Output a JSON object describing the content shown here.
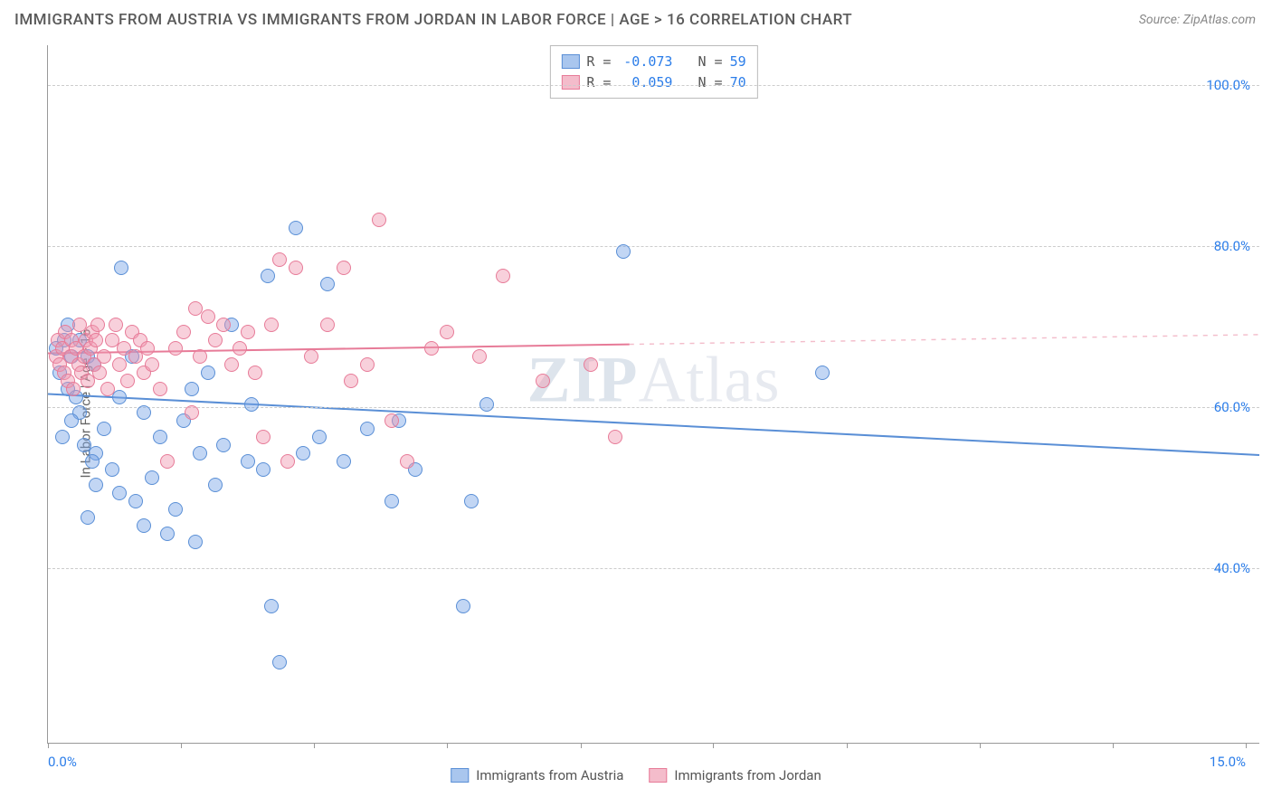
{
  "title": "IMMIGRANTS FROM AUSTRIA VS IMMIGRANTS FROM JORDAN IN LABOR FORCE | AGE > 16 CORRELATION CHART",
  "source": "Source: ZipAtlas.com",
  "ylabel": "In Labor Force | Age > 16",
  "watermark_a": "ZIP",
  "watermark_b": "Atlas",
  "chart": {
    "type": "scatter+regression",
    "background_color": "#ffffff",
    "grid_color": "#cccccc",
    "axis_color": "#999999",
    "xlim": [
      0,
      15
    ],
    "ylim": [
      20,
      105
    ],
    "yticks": [
      40,
      60,
      80,
      100
    ],
    "ytick_labels": [
      "40.0%",
      "60.0%",
      "80.0%",
      "100.0%"
    ],
    "ytick_color": "#2b7de9",
    "ytick_fontsize": 15,
    "xticks": [
      0,
      1.67,
      3.33,
      5.0,
      6.67,
      8.33,
      10.0,
      11.67,
      13.33,
      15.0
    ],
    "x_left_label": "0.0%",
    "x_right_label": "15.0%",
    "xlabel_color": "#2b7de9",
    "point_radius": 8,
    "point_opacity": 0.55,
    "line_width": 2,
    "series": [
      {
        "name": "Immigrants from Austria",
        "label": "Immigrants from Austria",
        "color_fill": "rgba(120,165,230,0.45)",
        "color_stroke": "#5a8fd6",
        "swatch_fill": "#a9c6ee",
        "swatch_stroke": "#5a8fd6",
        "R": "-0.073",
        "N": "59",
        "regression": {
          "x1": 0,
          "y1": 62.5,
          "x2": 15,
          "y2": 55.0,
          "solid_end_x": 15
        },
        "points": [
          [
            0.2,
            70
          ],
          [
            0.3,
            68
          ],
          [
            0.15,
            66
          ],
          [
            0.25,
            64
          ],
          [
            0.35,
            63
          ],
          [
            0.1,
            69
          ],
          [
            0.4,
            61
          ],
          [
            0.3,
            60
          ],
          [
            0.18,
            58
          ],
          [
            0.45,
            57
          ],
          [
            0.6,
            56
          ],
          [
            0.55,
            55
          ],
          [
            0.7,
            59
          ],
          [
            0.8,
            54
          ],
          [
            0.92,
            79
          ],
          [
            0.5,
            68
          ],
          [
            0.5,
            48
          ],
          [
            0.6,
            52
          ],
          [
            0.9,
            51
          ],
          [
            1.1,
            50
          ],
          [
            1.2,
            47
          ],
          [
            1.3,
            53
          ],
          [
            1.5,
            46
          ],
          [
            1.6,
            49
          ],
          [
            1.7,
            60
          ],
          [
            1.9,
            56
          ],
          [
            1.85,
            45
          ],
          [
            2.1,
            52
          ],
          [
            2.2,
            57
          ],
          [
            2.3,
            72
          ],
          [
            2.5,
            55
          ],
          [
            2.55,
            62
          ],
          [
            2.7,
            54
          ],
          [
            2.75,
            78
          ],
          [
            2.8,
            37
          ],
          [
            2.9,
            30
          ],
          [
            3.1,
            84
          ],
          [
            3.2,
            56
          ],
          [
            3.4,
            58
          ],
          [
            3.5,
            77
          ],
          [
            3.7,
            55
          ],
          [
            4.0,
            59
          ],
          [
            4.3,
            50
          ],
          [
            4.4,
            60
          ],
          [
            4.6,
            54
          ],
          [
            5.2,
            37
          ],
          [
            5.3,
            50
          ],
          [
            5.5,
            62
          ],
          [
            7.2,
            81
          ],
          [
            9.7,
            66
          ],
          [
            0.25,
            72
          ],
          [
            0.4,
            70
          ],
          [
            0.58,
            67
          ],
          [
            0.9,
            63
          ],
          [
            1.05,
            68
          ],
          [
            1.2,
            61
          ],
          [
            1.4,
            58
          ],
          [
            1.8,
            64
          ],
          [
            2.0,
            66
          ]
        ]
      },
      {
        "name": "Immigrants from Jordan",
        "label": "Immigrants from Jordan",
        "color_fill": "rgba(240,150,175,0.45)",
        "color_stroke": "#e77b98",
        "swatch_fill": "#f4bccb",
        "swatch_stroke": "#e77b98",
        "R": "0.059",
        "N": "70",
        "regression": {
          "x1": 0,
          "y1": 67.5,
          "x2": 15,
          "y2": 69.8,
          "solid_end_x": 7.2
        },
        "points": [
          [
            0.1,
            68
          ],
          [
            0.12,
            70
          ],
          [
            0.15,
            67
          ],
          [
            0.18,
            69
          ],
          [
            0.2,
            66
          ],
          [
            0.22,
            71
          ],
          [
            0.25,
            65
          ],
          [
            0.28,
            68
          ],
          [
            0.3,
            70
          ],
          [
            0.32,
            64
          ],
          [
            0.35,
            69
          ],
          [
            0.38,
            67
          ],
          [
            0.4,
            72
          ],
          [
            0.42,
            66
          ],
          [
            0.45,
            68
          ],
          [
            0.48,
            70
          ],
          [
            0.5,
            65
          ],
          [
            0.53,
            69
          ],
          [
            0.55,
            71
          ],
          [
            0.58,
            67
          ],
          [
            0.6,
            70
          ],
          [
            0.65,
            66
          ],
          [
            0.7,
            68
          ],
          [
            0.75,
            64
          ],
          [
            0.8,
            70
          ],
          [
            0.85,
            72
          ],
          [
            0.9,
            67
          ],
          [
            0.95,
            69
          ],
          [
            1.0,
            65
          ],
          [
            1.05,
            71
          ],
          [
            1.1,
            68
          ],
          [
            1.15,
            70
          ],
          [
            1.2,
            66
          ],
          [
            1.25,
            69
          ],
          [
            1.3,
            67
          ],
          [
            1.4,
            64
          ],
          [
            1.5,
            55
          ],
          [
            1.6,
            69
          ],
          [
            1.7,
            71
          ],
          [
            1.8,
            61
          ],
          [
            1.85,
            74
          ],
          [
            1.9,
            68
          ],
          [
            2.0,
            73
          ],
          [
            2.1,
            70
          ],
          [
            2.2,
            72
          ],
          [
            2.3,
            67
          ],
          [
            2.4,
            69
          ],
          [
            2.5,
            71
          ],
          [
            2.6,
            66
          ],
          [
            2.7,
            58
          ],
          [
            2.8,
            72
          ],
          [
            2.9,
            80
          ],
          [
            3.0,
            55
          ],
          [
            3.1,
            79
          ],
          [
            3.3,
            68
          ],
          [
            3.5,
            72
          ],
          [
            3.7,
            79
          ],
          [
            3.8,
            65
          ],
          [
            4.0,
            67
          ],
          [
            4.15,
            85
          ],
          [
            4.3,
            60
          ],
          [
            4.5,
            55
          ],
          [
            4.8,
            69
          ],
          [
            5.0,
            71
          ],
          [
            5.4,
            68
          ],
          [
            5.7,
            78
          ],
          [
            6.2,
            65
          ],
          [
            6.8,
            67
          ],
          [
            7.1,
            58
          ],
          [
            0.62,
            72
          ]
        ]
      }
    ]
  },
  "stats_legend": {
    "R_label": "R =",
    "N_label": "N ="
  }
}
